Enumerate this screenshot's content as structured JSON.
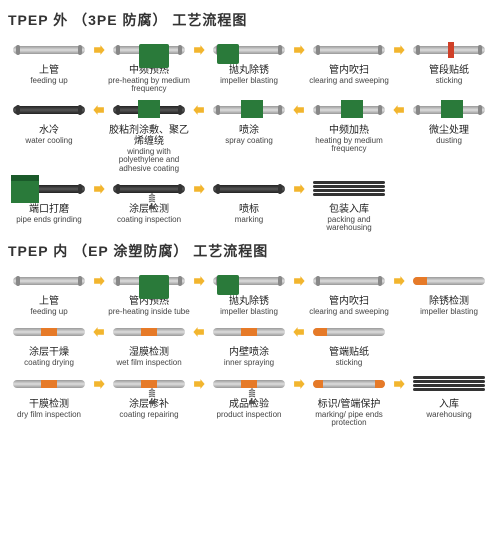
{
  "accent_green": "#2a7a3a",
  "arrow_color": "#f2b52e",
  "accent_orange": "#e67a28",
  "section1": {
    "title": "TPEP 外 （3PE 防腐） 工艺流程图",
    "rows": [
      [
        {
          "cn": "上管",
          "en": "feeding up",
          "icon": "pipe"
        },
        {
          "cn": "中频预热",
          "en": "pre-heating by medium frequency",
          "icon": "green-box"
        },
        {
          "cn": "抛丸除锈",
          "en": "impeller blasting",
          "icon": "green-side"
        },
        {
          "cn": "管内吹扫",
          "en": "clearing and sweeping",
          "icon": "pipe"
        },
        {
          "cn": "管段贴纸",
          "en": "sticking",
          "icon": "pipe-red"
        }
      ],
      [
        {
          "cn": "水冷",
          "en": "water cooling",
          "icon": "black"
        },
        {
          "cn": "胶粘剂涂敷、聚乙烯缠绕",
          "en": "winding with polyethylene and adhesive coating",
          "icon": "green-center"
        },
        {
          "cn": "喷涂",
          "en": "spray coating",
          "icon": "green-small"
        },
        {
          "cn": "中频加热",
          "en": "heating by medium frequency",
          "icon": "green-small"
        },
        {
          "cn": "微尘处理",
          "en": "dusting",
          "icon": "green-small"
        }
      ],
      [
        {
          "cn": "端口打磨",
          "en": "pipe ends grinding",
          "icon": "grinder"
        },
        {
          "cn": "涂层检测",
          "en": "coating inspection",
          "icon": "black-spring"
        },
        {
          "cn": "喷标",
          "en": "marking",
          "icon": "black"
        },
        {
          "cn": "包装入库",
          "en": "packing and warehousing",
          "icon": "stack"
        }
      ]
    ],
    "directions": [
      "right",
      "left",
      "right"
    ]
  },
  "section2": {
    "title": "TPEP 内 （EP 涂塑防腐） 工艺流程图",
    "rows": [
      [
        {
          "cn": "上管",
          "en": "feeding up",
          "icon": "pipe"
        },
        {
          "cn": "管内预热",
          "en": "pre-heating inside tube",
          "icon": "green-box"
        },
        {
          "cn": "抛丸除锈",
          "en": "impeller blasting",
          "icon": "green-side"
        },
        {
          "cn": "管内吹扫",
          "en": "clearing and sweeping",
          "icon": "pipe"
        },
        {
          "cn": "除锈检测",
          "en": "impeller blasting",
          "icon": "end-orange"
        }
      ],
      [
        {
          "cn": "涂层干燥",
          "en": "coating drying",
          "icon": "mid-orange"
        },
        {
          "cn": "湿膜检测",
          "en": "wet film inspection",
          "icon": "mid-orange"
        },
        {
          "cn": "内壁喷涂",
          "en": "inner spraying",
          "icon": "mid-orange"
        },
        {
          "cn": "管端贴纸",
          "en": "sticking",
          "icon": "end-orange"
        }
      ],
      [
        {
          "cn": "干膜检测",
          "en": "dry film inspection",
          "icon": "mid-orange"
        },
        {
          "cn": "涂层修补",
          "en": "coating repairing",
          "icon": "orange-spring"
        },
        {
          "cn": "成品检验",
          "en": "product inspection",
          "icon": "orange-spring"
        },
        {
          "cn": "标识/管端保护",
          "en": "marking/ pipe ends protection",
          "icon": "both-orange"
        },
        {
          "cn": "入库",
          "en": "warehousing",
          "icon": "stack"
        }
      ]
    ],
    "directions": [
      "right",
      "left",
      "right"
    ]
  }
}
